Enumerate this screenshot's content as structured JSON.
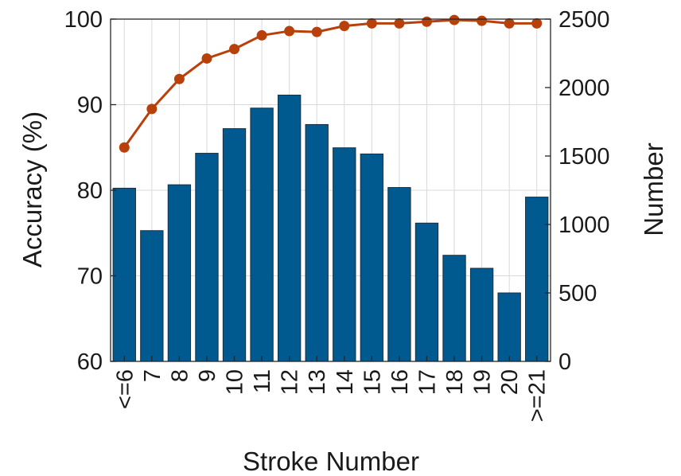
{
  "chart_data": {
    "type": "bar+line",
    "title": "",
    "xlabel": "Stroke Number",
    "ylabel_left": "Accuracy (%)",
    "ylabel_right": "Number",
    "categories": [
      "<=6",
      "7",
      "8",
      "9",
      "10",
      "11",
      "12",
      "13",
      "14",
      "15",
      "16",
      "17",
      "18",
      "19",
      "20",
      ">=21"
    ],
    "left_axis": {
      "ylim": [
        60,
        100
      ],
      "ticks": [
        60,
        70,
        80,
        90,
        100
      ],
      "tick_labels": [
        "60",
        "70",
        "80",
        "90",
        "100"
      ]
    },
    "right_axis": {
      "ylim": [
        0,
        2500
      ],
      "ticks": [
        0,
        500,
        1000,
        1500,
        2000,
        2500
      ],
      "tick_labels": [
        "0",
        "500",
        "1000",
        "1500",
        "2000",
        "2500"
      ]
    },
    "series": [
      {
        "type": "bar",
        "axis": "right",
        "color": "#005a8f",
        "values": [
          1265,
          955,
          1290,
          1520,
          1700,
          1850,
          1945,
          1730,
          1560,
          1515,
          1270,
          1010,
          775,
          680,
          500,
          1200
        ]
      },
      {
        "type": "line",
        "axis": "left",
        "color": "#b8400b",
        "values": [
          85.0,
          89.5,
          93.0,
          95.4,
          96.5,
          98.1,
          98.6,
          98.5,
          99.2,
          99.5,
          99.5,
          99.7,
          99.9,
          99.8,
          99.5,
          99.5
        ]
      }
    ],
    "grid": true,
    "legend": "none"
  }
}
